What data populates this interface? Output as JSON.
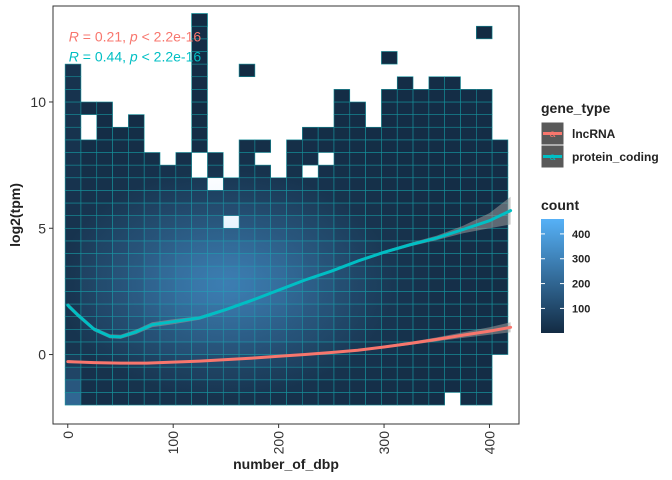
{
  "chart_data": {
    "type": "heatmap",
    "xlabel": "number_of_dbp",
    "ylabel": "log2(tpm)",
    "xlim": [
      -14,
      428
    ],
    "ylim": [
      -2.75,
      13.8
    ],
    "x_ticks": [
      0,
      100,
      200,
      300,
      400
    ],
    "x_tick_labels": [
      "0",
      "100",
      "200",
      "300",
      "400"
    ],
    "y_ticks": [
      0,
      5,
      10
    ],
    "y_tick_labels": [
      "0",
      "5",
      "10"
    ],
    "grid": false,
    "bins": {
      "x_start": -2.5,
      "x_width": 15,
      "count": 28,
      "y_start": -2,
      "y_height": 0.5,
      "top_log2tpm": [
        11.5,
        10,
        10,
        9.5,
        9.5,
        8,
        7.5,
        8,
        13.5,
        8,
        7.5,
        8.5,
        8.5,
        7.5,
        8.5,
        9,
        9,
        10.5,
        10.5,
        9,
        11,
        11,
        11,
        11,
        11,
        10.5,
        10.5,
        8.5
      ],
      "bottom_log2tpm": [
        -2,
        -2,
        -2,
        -2,
        -2,
        -2,
        -2,
        -2,
        -2,
        -2,
        -2,
        -2,
        -2,
        -2,
        -2,
        -2,
        -2,
        -2,
        -2,
        -2,
        -2,
        -2,
        -2,
        -2,
        -1.5,
        -2,
        -2,
        0
      ],
      "top_isolated_bins": [
        {
          "x_bin": 8,
          "bottom": 13,
          "top": 13.5
        },
        {
          "x_bin": 26,
          "bottom": 12.5,
          "top": 13
        },
        {
          "x_bin": 20,
          "bottom": 11.5,
          "top": 12
        },
        {
          "x_bin": 11,
          "bottom": 11,
          "top": 11.5
        }
      ],
      "white_gaps": [
        {
          "x_bin": 1,
          "bottom": 8.5,
          "top": 9.5
        },
        {
          "x_bin": 3,
          "bottom": 9,
          "top": 9.5
        },
        {
          "x_bin": 5,
          "bottom": 8,
          "top": 9.5
        },
        {
          "x_bin": 7,
          "bottom": 8,
          "top": 8.5
        },
        {
          "x_bin": 9,
          "bottom": 6.5,
          "top": 7
        },
        {
          "x_bin": 10,
          "bottom": 7,
          "top": 7.5
        },
        {
          "x_bin": 8,
          "bottom": 7,
          "top": 8
        },
        {
          "x_bin": 12,
          "bottom": 7.5,
          "top": 8
        },
        {
          "x_bin": 13,
          "bottom": 7,
          "top": 7.5
        },
        {
          "x_bin": 15,
          "bottom": 7,
          "top": 7.5
        },
        {
          "x_bin": 16,
          "bottom": 7.5,
          "top": 8
        },
        {
          "x_bin": 10,
          "bottom": 5,
          "top": 5.5
        },
        {
          "x_bin": 26,
          "bottom": 10.5,
          "top": 11
        },
        {
          "x_bin": 18,
          "bottom": 10,
          "top": 10.5
        },
        {
          "x_bin": 19,
          "bottom": 10,
          "top": 10.5
        },
        {
          "x_bin": 20,
          "bottom": 10.5,
          "top": 11
        },
        {
          "x_bin": 22,
          "bottom": 10.5,
          "top": 11
        }
      ],
      "dark_isolated_bins": [
        {
          "x_bin": 4,
          "bottom": 10,
          "top": 10.5
        },
        {
          "x_bin": 6,
          "bottom": 10.5,
          "top": 11
        },
        {
          "x_bin": 3,
          "bottom": 10,
          "top": 10.5
        },
        {
          "x_bin": 8,
          "bottom": 9.5,
          "top": 10
        },
        {
          "x_bin": 10,
          "bottom": 10,
          "top": 10.5
        }
      ],
      "hotspot": {
        "x": 150,
        "y": 2.8,
        "peak_count": 430
      },
      "first_column_count": 180
    },
    "count_colorscale": {
      "low": "#132B43",
      "high": "#56B1F7",
      "min": 1,
      "max": 460
    },
    "series": [
      {
        "name": "lncRNA",
        "color": "#F8766D",
        "x": [
          0,
          25,
          50,
          75,
          100,
          125,
          150,
          175,
          200,
          225,
          250,
          275,
          300,
          325,
          350,
          375,
          400,
          420
        ],
        "y": [
          -0.28,
          -0.32,
          -0.34,
          -0.34,
          -0.3,
          -0.26,
          -0.2,
          -0.14,
          -0.07,
          0.0,
          0.08,
          0.17,
          0.3,
          0.44,
          0.6,
          0.77,
          0.93,
          1.08
        ],
        "band_halfwidth": [
          0.06,
          0.04,
          0.03,
          0.03,
          0.03,
          0.03,
          0.03,
          0.03,
          0.03,
          0.03,
          0.04,
          0.04,
          0.05,
          0.06,
          0.08,
          0.11,
          0.15,
          0.2
        ]
      },
      {
        "name": "protein_coding",
        "color": "#00BFC4",
        "x": [
          0,
          10,
          25,
          40,
          50,
          65,
          80,
          100,
          125,
          150,
          175,
          200,
          225,
          250,
          275,
          300,
          325,
          350,
          375,
          400,
          420
        ],
        "y": [
          1.95,
          1.55,
          1.0,
          0.72,
          0.7,
          0.9,
          1.18,
          1.3,
          1.45,
          1.78,
          2.15,
          2.55,
          2.95,
          3.3,
          3.7,
          4.05,
          4.35,
          4.62,
          4.95,
          5.3,
          5.7
        ],
        "band_halfwidth": [
          0.1,
          0.09,
          0.08,
          0.08,
          0.08,
          0.09,
          0.1,
          0.1,
          0.07,
          0.06,
          0.05,
          0.05,
          0.05,
          0.05,
          0.05,
          0.06,
          0.07,
          0.09,
          0.15,
          0.3,
          0.55
        ]
      }
    ],
    "annotations": [
      {
        "color": "#F8766D",
        "r_symbol": "R",
        "r_part": " = 0.21, ",
        "p_symbol": "p",
        "p_part": " < 2.2e-16",
        "x": 0,
        "y": 12.6
      },
      {
        "color": "#00BFC4",
        "r_symbol": "R",
        "r_part": " = 0.44, ",
        "p_symbol": "p",
        "p_part": " < 2.2e-16",
        "x": 0,
        "y": 11.8
      }
    ],
    "legend_position": "right",
    "legend_gene_type": {
      "title": "gene_type",
      "items": [
        {
          "label": "lncRNA",
          "color": "#F8766D",
          "icon": "line-with-letter-a-icon",
          "glyph": "a"
        },
        {
          "label": "protein_coding",
          "color": "#00BFC4",
          "icon": "line-with-letter-a-icon",
          "glyph": "a"
        }
      ]
    },
    "legend_count": {
      "title": "count",
      "ticks": [
        100,
        200,
        300,
        400
      ],
      "tick_labels": [
        "100",
        "200",
        "300",
        "400"
      ],
      "min": 1,
      "max": 460
    }
  }
}
